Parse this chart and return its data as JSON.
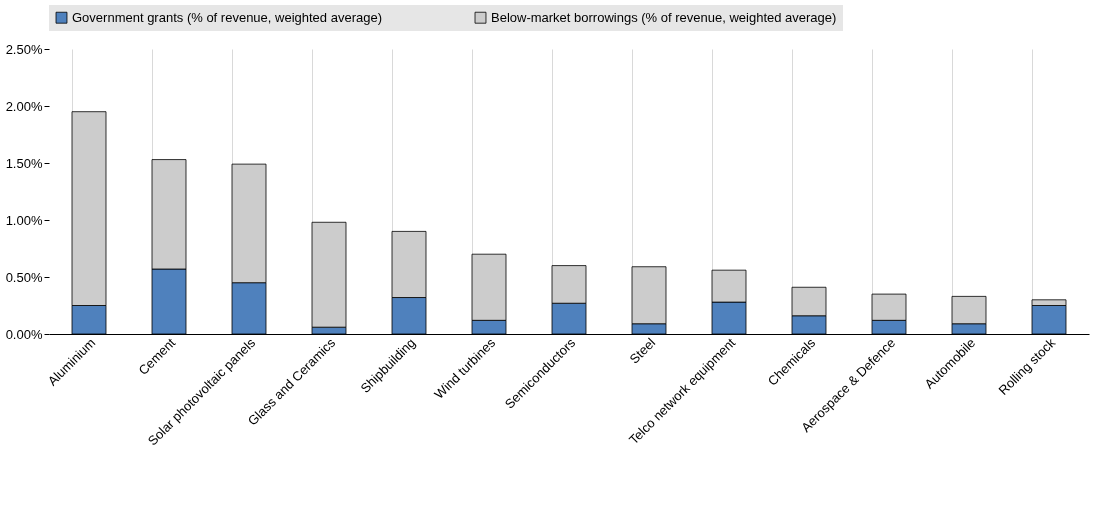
{
  "chart_data": {
    "type": "bar",
    "stacked": true,
    "categories": [
      "Aluminium",
      "Cement",
      "Solar photovoltaic panels",
      "Glass and Ceramics",
      "Shipbuilding",
      "Wind turbines",
      "Semiconductors",
      "Steel",
      "Telco network equipment",
      "Chemicals",
      "Aerospace & Defence",
      "Automobile",
      "Rolling stock"
    ],
    "series": [
      {
        "name": "Government grants (% of revenue, weighted average)",
        "color": "#4f81bd",
        "values": [
          0.25,
          0.57,
          0.45,
          0.06,
          0.32,
          0.12,
          0.27,
          0.09,
          0.28,
          0.16,
          0.12,
          0.09,
          0.25
        ]
      },
      {
        "name": "Below-market borrowings (% of revenue, weighted average)",
        "color": "#cccccc",
        "values": [
          1.7,
          0.96,
          1.04,
          0.92,
          0.58,
          0.58,
          0.33,
          0.5,
          0.28,
          0.25,
          0.23,
          0.24,
          0.05
        ]
      }
    ],
    "ylim": [
      0,
      2.5
    ],
    "yticks": [
      {
        "value": 0,
        "label": "0.00%"
      },
      {
        "value": 0.5,
        "label": "0.50%"
      },
      {
        "value": 1,
        "label": "1.00%"
      },
      {
        "value": 1.5,
        "label": "1.50%"
      },
      {
        "value": 2,
        "label": "2.00%"
      },
      {
        "value": 2.5,
        "label": "2.50%"
      }
    ],
    "grid": "x",
    "legend": "top"
  }
}
